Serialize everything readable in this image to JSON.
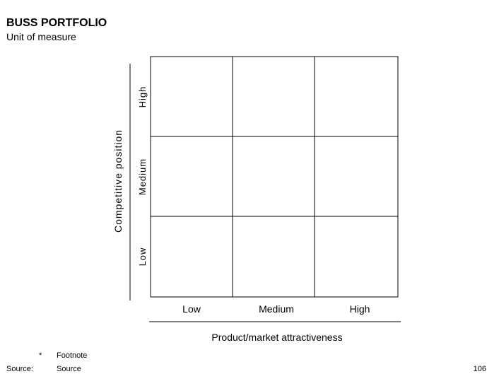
{
  "header": {
    "title": "BUSS PORTFOLIO",
    "subtitle": "Unit of measure"
  },
  "y_axis": {
    "title": "Competitive position",
    "labels": [
      "High",
      "Medium",
      "Low"
    ]
  },
  "x_axis": {
    "title": "Product/market attractiveness",
    "labels": [
      "Low",
      "Medium",
      "High"
    ]
  },
  "footnote": {
    "marker": "*",
    "text": "Footnote"
  },
  "source": {
    "label": "Source:",
    "text": "Source"
  },
  "page_number": "106"
}
